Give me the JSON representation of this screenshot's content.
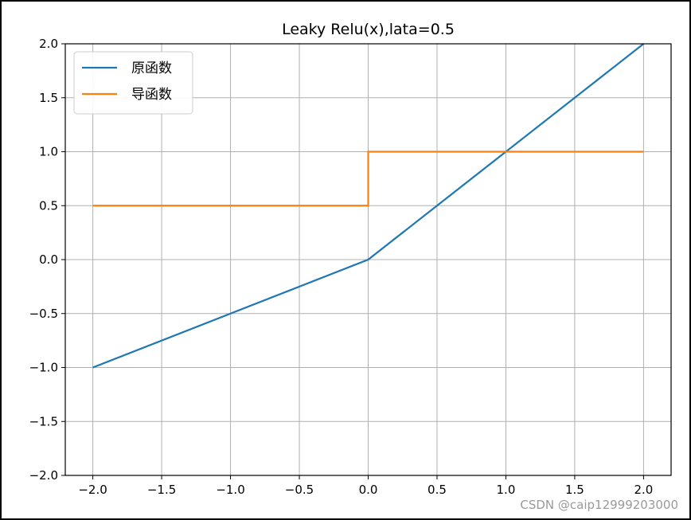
{
  "chart_data": {
    "type": "line",
    "title": "Leaky Relu(x),lata=0.5",
    "xlabel": "",
    "ylabel": "",
    "xlim": [
      -2.2,
      2.2
    ],
    "ylim": [
      -2.0,
      2.0
    ],
    "grid": true,
    "legend_position": "top-left",
    "x_ticks": [
      -2.0,
      -1.5,
      -1.0,
      -0.5,
      0.0,
      0.5,
      1.0,
      1.5,
      2.0
    ],
    "x_tick_labels": [
      "−2.0",
      "−1.5",
      "−1.0",
      "−0.5",
      "0.0",
      "0.5",
      "1.0",
      "1.5",
      "2.0"
    ],
    "y_ticks": [
      -2.0,
      -1.5,
      -1.0,
      -0.5,
      0.0,
      0.5,
      1.0,
      1.5,
      2.0
    ],
    "y_tick_labels": [
      "−2.0",
      "−1.5",
      "−1.0",
      "−0.5",
      "0.0",
      "0.5",
      "1.0",
      "1.5",
      "2.0"
    ],
    "series": [
      {
        "name": "原函数",
        "color": "#1f77b4",
        "x": [
          -2.0,
          0.0,
          2.0
        ],
        "y": [
          -1.0,
          0.0,
          2.0
        ]
      },
      {
        "name": "导函数",
        "color": "#ff7f0e",
        "x": [
          -2.0,
          0.0,
          0.0,
          2.0
        ],
        "y": [
          0.5,
          0.5,
          1.0,
          1.0
        ]
      }
    ]
  },
  "watermark": "CSDN @caip12999203000"
}
